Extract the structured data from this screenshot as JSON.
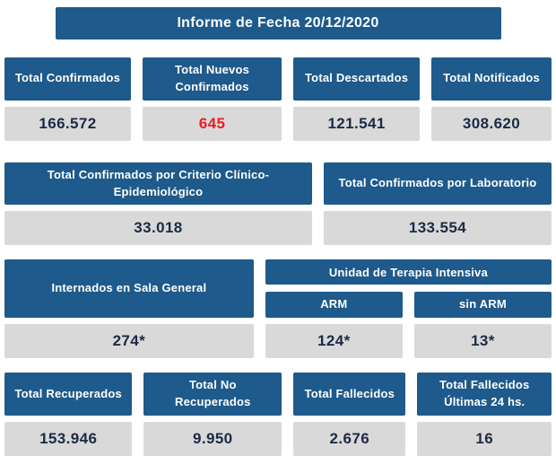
{
  "colors": {
    "blue": "#1e5a8b",
    "gray": "#d9d9d9",
    "navy": "#1b2a45",
    "red": "#ed1c24",
    "background": "#ffffff"
  },
  "header": {
    "title": "Informe de Fecha 20/12/2020"
  },
  "stats_row1": {
    "confirmados": {
      "label": "Total Confirmados",
      "value": "166.572"
    },
    "nuevos": {
      "label": "Total Nuevos Confirmados",
      "value": "645"
    },
    "descartados": {
      "label": "Total Descartados",
      "value": "121.541"
    },
    "notificados": {
      "label": "Total Notificados",
      "value": "308.620"
    }
  },
  "stats_row2": {
    "criterio_clinico": {
      "label": "Total Confirmados por Criterio Clínico-Epidemiológico",
      "value": "33.018"
    },
    "laboratorio": {
      "label": "Total Confirmados por Laboratorio",
      "value": "133.554"
    }
  },
  "stats_row3": {
    "sala_general": {
      "label": "Internados en Sala General",
      "value": "274*"
    },
    "uti": {
      "label": "Unidad de Terapia Intensiva",
      "arm": {
        "label": "ARM",
        "value": "124*"
      },
      "sin_arm": {
        "label": "sin ARM",
        "value": "13*"
      }
    }
  },
  "stats_row4": {
    "recuperados": {
      "label": "Total Recuperados",
      "value": "153.946"
    },
    "no_recuperados": {
      "label": "Total No Recuperados",
      "value": "9.950"
    },
    "fallecidos": {
      "label": "Total Fallecidos",
      "value": "2.676"
    },
    "fallecidos_24h": {
      "label": "Total Fallecidos Últimas 24 hs.",
      "value": "16"
    }
  }
}
